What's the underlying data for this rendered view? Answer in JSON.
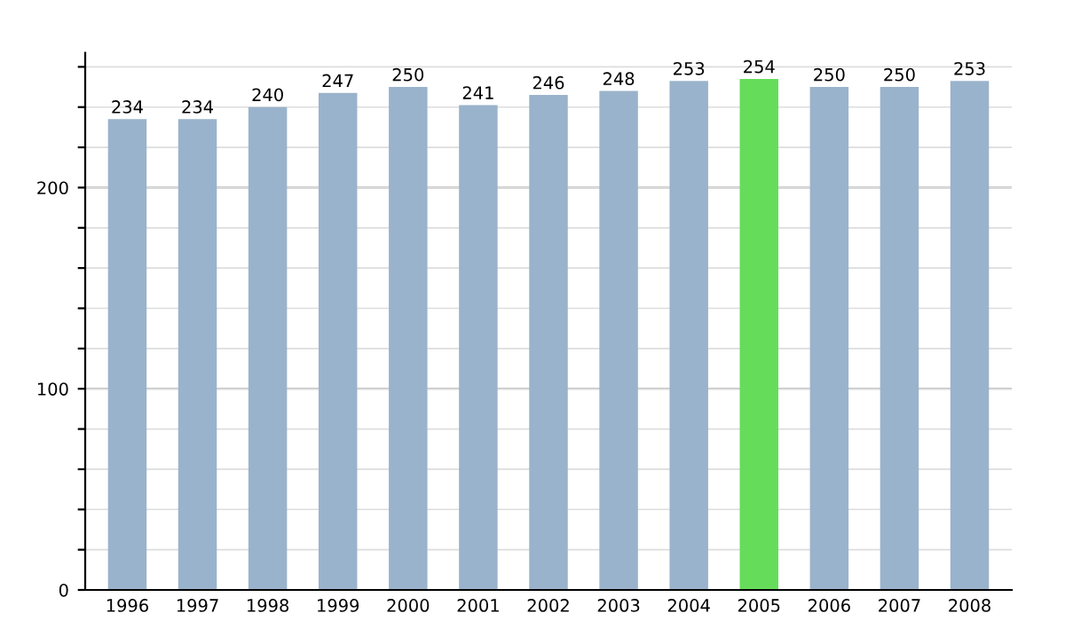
{
  "chart_data": {
    "type": "bar",
    "categories": [
      "1996",
      "1997",
      "1998",
      "1999",
      "2000",
      "2001",
      "2002",
      "2003",
      "2004",
      "2005",
      "2006",
      "2007",
      "2008"
    ],
    "values": [
      234,
      234,
      240,
      247,
      250,
      241,
      246,
      248,
      253,
      254,
      250,
      250,
      253
    ],
    "colors": [
      "#9ab3cc",
      "#9ab3cc",
      "#9ab3cc",
      "#9ab3cc",
      "#9ab3cc",
      "#9ab3cc",
      "#9ab3cc",
      "#9ab3cc",
      "#9ab3cc",
      "#66dd5a",
      "#9ab3cc",
      "#9ab3cc",
      "#9ab3cc"
    ],
    "ylim": [
      0,
      267
    ],
    "yticks": [
      0,
      {
        "value": 20,
        "label": null
      },
      {
        "value": 40,
        "label": null
      },
      {
        "value": 60,
        "label": null
      },
      {
        "value": 80,
        "label": null
      },
      100,
      {
        "value": 120,
        "label": null
      },
      {
        "value": 140,
        "label": null
      },
      {
        "value": 160,
        "label": null
      },
      {
        "value": 180,
        "label": null
      },
      200,
      {
        "value": 220,
        "label": null
      },
      {
        "value": 240,
        "label": null
      },
      {
        "value": 260,
        "label": null
      }
    ],
    "grid": "y",
    "data_labels": true
  }
}
